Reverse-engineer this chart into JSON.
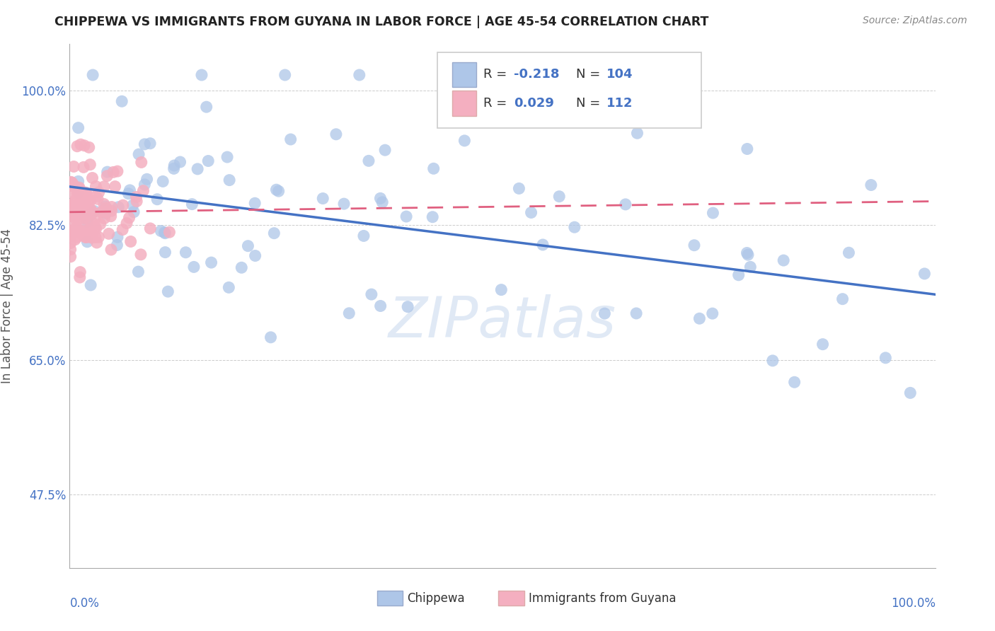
{
  "title": "CHIPPEWA VS IMMIGRANTS FROM GUYANA IN LABOR FORCE | AGE 45-54 CORRELATION CHART",
  "source": "Source: ZipAtlas.com",
  "ylabel": "In Labor Force | Age 45-54",
  "yticks": [
    0.475,
    0.65,
    0.825,
    1.0
  ],
  "ytick_labels": [
    "47.5%",
    "65.0%",
    "82.5%",
    "100.0%"
  ],
  "xlim": [
    0.0,
    1.0
  ],
  "ylim": [
    0.38,
    1.06
  ],
  "blue_R": -0.218,
  "blue_N": 104,
  "pink_R": 0.029,
  "pink_N": 112,
  "blue_color": "#aec6e8",
  "pink_color": "#f4afc0",
  "blue_trend_color": "#4472c4",
  "pink_trend_color": "#e06080",
  "legend_label_blue": "Chippewa",
  "legend_label_pink": "Immigrants from Guyana",
  "watermark": "ZIPatlas",
  "blue_trend_x0": 0.0,
  "blue_trend_y0": 0.875,
  "blue_trend_x1": 1.0,
  "blue_trend_y1": 0.735,
  "pink_trend_x0": 0.0,
  "pink_trend_y0": 0.842,
  "pink_trend_x1": 1.0,
  "pink_trend_y1": 0.856
}
